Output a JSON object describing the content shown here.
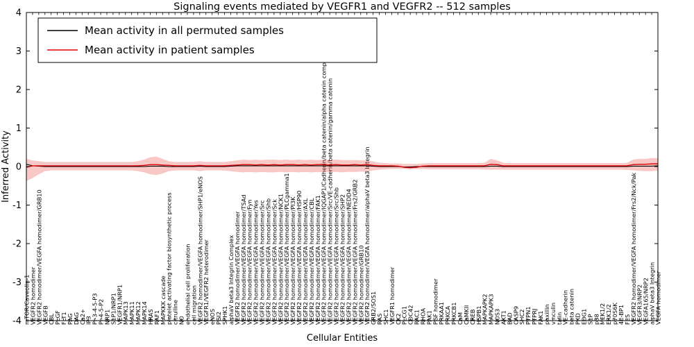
{
  "figure": {
    "title": "Signaling events mediated by VEGFR1 and VEGFR2 -- 512 samples",
    "xlabel": "Cellular Entities",
    "ylabel": "Inferred Activity"
  },
  "chart_data": {
    "type": "line",
    "title": "Signaling events mediated by VEGFR1 and VEGFR2 -- 512 samples",
    "xlabel": "Cellular Entities",
    "ylabel": "Inferred Activity",
    "ylim": [
      -4,
      4
    ],
    "yticks": [
      "-4",
      "-3",
      "-2",
      "-1",
      "0",
      "1",
      "2",
      "3",
      "4"
    ],
    "grid": false,
    "legend": {
      "position": "upper left",
      "entries": [
        {
          "label": "Mean activity in all permuted samples",
          "color": "#000000"
        },
        {
          "label": "Mean activity in patient samples",
          "color": "#dd0000"
        }
      ]
    },
    "band_color": "#ee4444",
    "band_opacity": 0.3,
    "categories": [
      "mTOR/Caveolin-1",
      "VEGFR2 homodimer",
      "VEGFR2 homodimer/VEGFA homodimer/GRB10",
      "VEGFB",
      "CBL",
      "PLGF",
      "FLT1",
      "PAG",
      "DAG",
      "Ca2+",
      "IP3",
      "PI-3-4-5-P3",
      "PI-4-5-P2",
      "NRP1",
      "S1P1/NRP1",
      "VEGFR1/NRP1",
      "MAPK13",
      "MAPK11",
      "MAPK12",
      "MAPK14",
      "HRAS",
      "RAF1",
      "MAPKKK cascade",
      "platelet activating factor biosynthetic process",
      "citrulline",
      "NO",
      "endothelial cell proliferation",
      "cell migration",
      "VEGFR2 homodimer/VEGFA homodimer/SHP1/eNOS",
      "VEGFR1/VEGFR2 heterodimer",
      "eNOS",
      "PGI2",
      "SPHK1",
      "alphaV beta3 Integrin Complex",
      "VEGFR2 homodimer/VEGFA homodimer",
      "VEGFR2 homodimer/VEGFA homodimer/TSAd",
      "VEGFR2 homodimer/VEGFA homodimer/Fyn",
      "VEGFR2 homodimer/VEGFA homodimer/Yes",
      "VEGFR2 homodimer/VEGFA homodimer/Src",
      "VEGFR2 homodimer/VEGFA homodimer/Shb",
      "VEGFR2 homodimer/VEGFA homodimer/Sck",
      "VEGFR2 homodimer/VEGFA homodimer/NCK1",
      "VEGFR2 homodimer/VEGFA homodimer/PLCgamma1",
      "VEGFR2 homodimer/VEGFA homodimer/PI3K",
      "VEGFR2 homodimer/VEGFA homodimer/HSP90",
      "VEGFR2 homodimer/VEGFA homodimer/AXL",
      "VEGFR2 homodimer/VEGFA homodimer/CBL",
      "VEGFR2 homodimer/VEGFA homodimer/FAK1",
      "VEGFR2 homodimer/VEGFA homodimer/IQGAP1/Cadherin/beta catenin/alpha catenin complex",
      "VEGFR2 homodimer/VEGFA homodimer/Src/VE-cadherin/beta catenin/gamma catenin",
      "VEGFR2 homodimer/VEGFA homodimer/Src/Shb",
      "VEGFR2 homodimer/VEGFA homodimer/SHP2",
      "VEGFR2 homodimer/VEGFA homodimer/NEDD4",
      "VEGFR2 homodimer/VEGFA homodimer/Frs2/GRB2",
      "VEGFR2 homodimer/GRB10",
      "VEGFR2 homodimer/VEGFA homodimer/alphaV beta3 Integrin",
      "GRB2/SOS1",
      "RAS",
      "SHC1",
      "VEGFR1 homodimer",
      "CK2",
      "PLCG1",
      "CDC42",
      "RAC1",
      "RHOA",
      "PAK1",
      "PGF homodimer",
      "PRKAA1",
      "PRKCA",
      "PRKCB1",
      "CaM",
      "CaMKII",
      "CREB",
      "HSPB1",
      "MAPKAPK2",
      "MAPKAPK3",
      "NOS3",
      "AKT1",
      "BAD",
      "CASP9",
      "SHC2",
      "PTPN1",
      "PTPRJ",
      "FAK1",
      "paxillin",
      "vinculin",
      "talin",
      "VE-cadherin",
      "beta catenin",
      "PKD",
      "EDG1",
      "S1P",
      "p38",
      "MEK1/2",
      "ERK1/2",
      "p70S6K",
      "4E-BP1",
      "FES",
      "VEGFR2 homodimer/VEGFA homodimer/Frs2/Nck/Pak",
      "VEGFR3/NRP2",
      "VEGFA165/NRP2",
      "alphaV beta3 Integrin",
      "VEGFA homodimer"
    ],
    "series": [
      {
        "name": "Mean activity in all permuted samples",
        "color": "#000000",
        "values": [
          0.06,
          0.02,
          0.01,
          0,
          0,
          0,
          0,
          0,
          0,
          0,
          0,
          0,
          0,
          0,
          0,
          0,
          0,
          0,
          0,
          0,
          0.01,
          0.01,
          0.01,
          0,
          0,
          0,
          0,
          0,
          0.01,
          0,
          0,
          0,
          0,
          0.01,
          0.02,
          0.02,
          0.02,
          0.02,
          0.02,
          0.02,
          0.02,
          0.02,
          0.02,
          0.02,
          0.02,
          0.02,
          0.02,
          0.02,
          0.02,
          0.02,
          0.02,
          0.02,
          0.02,
          0.02,
          0.02,
          0.02,
          0.01,
          0,
          0,
          0,
          0,
          -0.01,
          -0.01,
          0,
          0,
          0,
          0,
          0,
          0,
          0,
          0,
          0,
          0,
          0,
          0,
          0.01,
          0.01,
          0,
          0,
          0,
          0,
          0,
          0,
          0,
          0,
          0,
          0,
          0,
          0,
          0,
          0,
          0,
          0,
          0,
          0,
          0,
          0,
          0,
          0.01,
          0.01,
          0.01,
          0.01,
          0.02
        ]
      },
      {
        "name": "Mean activity in patient samples",
        "color": "#dd0000",
        "values": [
          -0.02,
          0.02,
          0.02,
          0.02,
          0.02,
          0.02,
          0.02,
          0.02,
          0.02,
          0.02,
          0.02,
          0.02,
          0.02,
          0.02,
          0.02,
          0.02,
          0.02,
          0.02,
          0.02,
          0.03,
          0.05,
          0.05,
          0.04,
          0.03,
          0.02,
          0.02,
          0.02,
          0.02,
          0.03,
          0.02,
          0.02,
          0.02,
          0.02,
          0.03,
          0.04,
          0.05,
          0.05,
          0.04,
          0.05,
          0.04,
          0.05,
          0.04,
          0.05,
          0.05,
          0.04,
          0.05,
          0.04,
          0.05,
          0.05,
          0.04,
          0.05,
          0.04,
          0.04,
          0.05,
          0.04,
          0.05,
          0.03,
          0.02,
          0.02,
          0.02,
          0.01,
          -0.02,
          -0.03,
          -0.02,
          0.01,
          0.02,
          0.02,
          0.02,
          0.02,
          0.02,
          0.02,
          0.02,
          0.02,
          0.02,
          0.02,
          0.06,
          0.05,
          0.02,
          0.02,
          0.02,
          0.02,
          0.02,
          0.02,
          0.02,
          0.02,
          0.02,
          0.02,
          0.02,
          0.02,
          0.02,
          0.02,
          0.02,
          0.02,
          0.02,
          0.02,
          0.02,
          0.02,
          0.02,
          0.05,
          0.06,
          0.06,
          0.07,
          0.07
        ]
      }
    ],
    "patient_band": {
      "low": [
        -0.38,
        -0.3,
        -0.2,
        -0.12,
        -0.1,
        -0.1,
        -0.1,
        -0.1,
        -0.1,
        -0.1,
        -0.1,
        -0.1,
        -0.1,
        -0.1,
        -0.1,
        -0.1,
        -0.1,
        -0.1,
        -0.12,
        -0.15,
        -0.2,
        -0.22,
        -0.18,
        -0.12,
        -0.1,
        -0.1,
        -0.1,
        -0.1,
        -0.12,
        -0.1,
        -0.1,
        -0.1,
        -0.1,
        -0.12,
        -0.14,
        -0.15,
        -0.14,
        -0.15,
        -0.14,
        -0.15,
        -0.15,
        -0.14,
        -0.15,
        -0.14,
        -0.15,
        -0.14,
        -0.15,
        -0.14,
        -0.15,
        -0.14,
        -0.14,
        -0.15,
        -0.14,
        -0.14,
        -0.13,
        -0.13,
        -0.1,
        -0.08,
        -0.07,
        -0.06,
        -0.06,
        -0.06,
        -0.07,
        -0.06,
        -0.06,
        -0.07,
        -0.07,
        -0.07,
        -0.07,
        -0.07,
        -0.07,
        -0.07,
        -0.07,
        -0.07,
        -0.08,
        -0.08,
        -0.08,
        -0.08,
        -0.08,
        -0.08,
        -0.08,
        -0.08,
        -0.08,
        -0.08,
        -0.08,
        -0.08,
        -0.08,
        -0.08,
        -0.08,
        -0.08,
        -0.08,
        -0.08,
        -0.08,
        -0.08,
        -0.08,
        -0.08,
        -0.08,
        -0.09,
        -0.1,
        -0.11,
        -0.12,
        -0.12,
        -0.1
      ],
      "high": [
        0.2,
        0.16,
        0.14,
        0.12,
        0.12,
        0.12,
        0.12,
        0.12,
        0.12,
        0.12,
        0.12,
        0.12,
        0.12,
        0.12,
        0.12,
        0.12,
        0.12,
        0.12,
        0.14,
        0.18,
        0.24,
        0.26,
        0.2,
        0.14,
        0.12,
        0.12,
        0.12,
        0.12,
        0.14,
        0.12,
        0.12,
        0.12,
        0.12,
        0.14,
        0.16,
        0.18,
        0.17,
        0.18,
        0.17,
        0.18,
        0.18,
        0.17,
        0.18,
        0.17,
        0.18,
        0.17,
        0.18,
        0.17,
        0.18,
        0.17,
        0.18,
        0.17,
        0.17,
        0.17,
        0.16,
        0.16,
        0.13,
        0.1,
        0.09,
        0.08,
        0.08,
        0.07,
        0.07,
        0.07,
        0.08,
        0.09,
        0.09,
        0.09,
        0.09,
        0.09,
        0.09,
        0.09,
        0.09,
        0.09,
        0.1,
        0.2,
        0.16,
        0.1,
        0.09,
        0.09,
        0.09,
        0.09,
        0.09,
        0.09,
        0.09,
        0.09,
        0.09,
        0.09,
        0.09,
        0.09,
        0.09,
        0.09,
        0.09,
        0.09,
        0.09,
        0.09,
        0.09,
        0.1,
        0.18,
        0.2,
        0.2,
        0.22,
        0.22
      ]
    }
  }
}
